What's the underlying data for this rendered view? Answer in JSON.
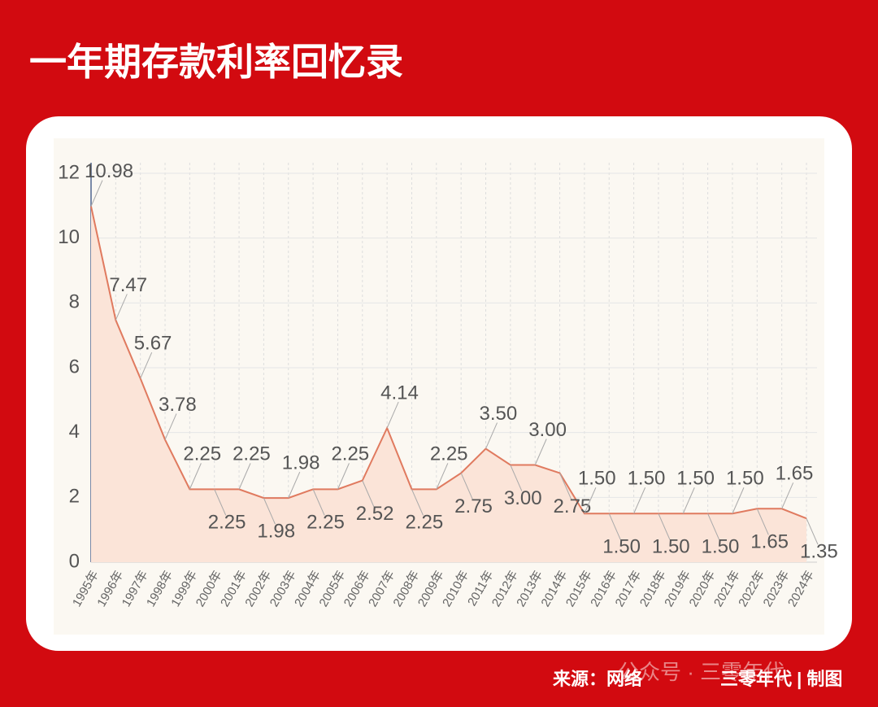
{
  "chart_data": {
    "type": "line",
    "title": "一年期存款利率回忆录",
    "categories": [
      "1995年",
      "1996年",
      "1997年",
      "1998年",
      "1999年",
      "2000年",
      "2001年",
      "2002年",
      "2003年",
      "2004年",
      "2005年",
      "2006年",
      "2007年",
      "2008年",
      "2009年",
      "2010年",
      "2011年",
      "2012年",
      "2013年",
      "2014年",
      "2015年",
      "2016年",
      "2017年",
      "2018年",
      "2019年",
      "2020年",
      "2021年",
      "2022年",
      "2023年",
      "2024年"
    ],
    "values": [
      10.98,
      7.47,
      5.67,
      3.78,
      2.25,
      2.25,
      2.25,
      1.98,
      1.98,
      2.25,
      2.25,
      2.52,
      4.14,
      2.25,
      2.25,
      2.75,
      3.5,
      3,
      3,
      2.75,
      1.5,
      1.5,
      1.5,
      1.5,
      1.5,
      1.5,
      1.5,
      1.65,
      1.65,
      1.35
    ],
    "value_labels": [
      "10.98",
      "7.47",
      "5.67",
      "3.78",
      "2.25",
      "2.25",
      "2.25",
      "1.98",
      "1.98",
      "2.25",
      "2.25",
      "2.52",
      "4.14",
      "2.25",
      "2.25",
      "2.75",
      "3.50",
      "3.00",
      "3.00",
      "2.75",
      "1.50",
      "1.50",
      "1.50",
      "1.50",
      "1.50",
      "1.50",
      "1.50",
      "1.65",
      "1.65",
      "1.35"
    ],
    "color": "#e07a5f",
    "fill": "#fbe4d8",
    "ylim": [
      0,
      12
    ],
    "yticks": [
      0,
      2,
      4,
      6,
      8,
      10,
      12
    ],
    "grid": true,
    "source": "来源：网络",
    "credit": "三零年代 | 制图",
    "watermark": "公众号 · 三零年代"
  }
}
